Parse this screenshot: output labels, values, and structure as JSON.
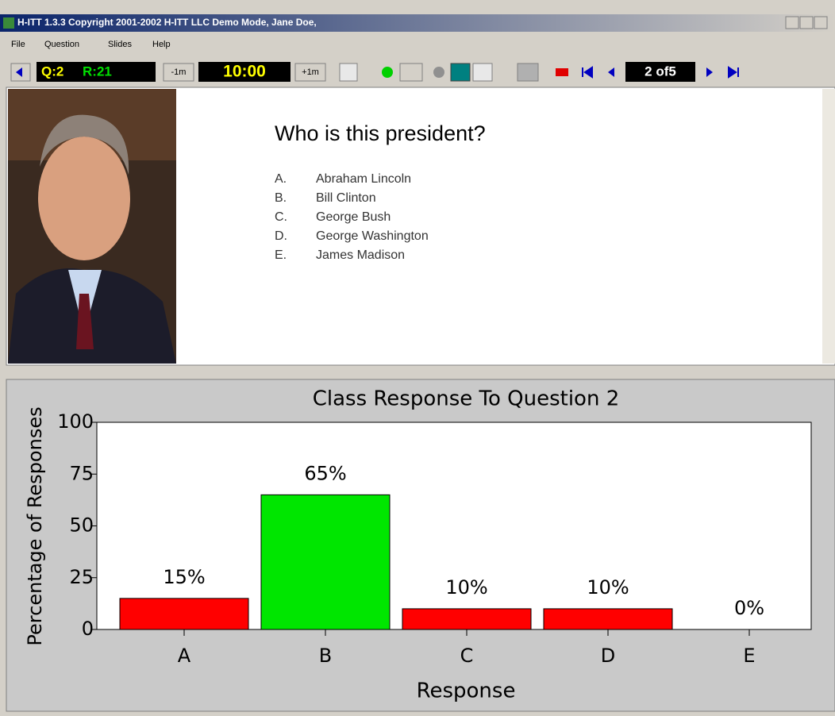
{
  "window": {
    "title": "H-ITT 1.3.3 Copyright 2001-2002 H-ITT LLC Demo Mode, Jane Doe,"
  },
  "menu": [
    "File",
    "Question",
    "Slides",
    "Help"
  ],
  "toolbar": {
    "question_count": "Q:2",
    "response_count": "R:21",
    "minus": "-1m",
    "timer": "10:00",
    "plus": "+1m",
    "slide_position": "2 of5"
  },
  "slide": {
    "question": "Who is this president?",
    "options": [
      {
        "letter": "A.",
        "text": "Abraham Lincoln"
      },
      {
        "letter": "B.",
        "text": "Bill Clinton"
      },
      {
        "letter": "C.",
        "text": "George Bush"
      },
      {
        "letter": "D.",
        "text": "George Washington"
      },
      {
        "letter": "E.",
        "text": "James Madison"
      }
    ]
  },
  "chart_data": {
    "type": "bar",
    "title": "Class Response To Question 2",
    "xlabel": "Response",
    "ylabel": "Percentage of Responses",
    "categories": [
      "A",
      "B",
      "C",
      "D",
      "E"
    ],
    "values": [
      15,
      65,
      10,
      10,
      0
    ],
    "value_labels": [
      "15%",
      "65%",
      "10%",
      "10%",
      "0%"
    ],
    "colors": [
      "#ff0000",
      "#00e600",
      "#ff0000",
      "#ff0000",
      "#ff0000"
    ],
    "ylim": [
      0,
      100
    ],
    "yticks": [
      0,
      25,
      50,
      75,
      100
    ]
  }
}
